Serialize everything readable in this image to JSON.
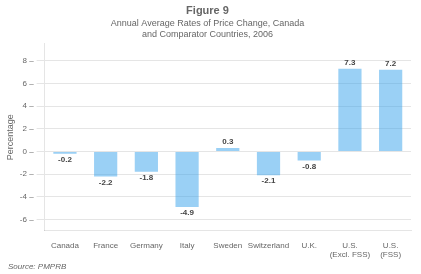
{
  "chart_data": {
    "type": "bar",
    "title": "Figure 9",
    "subtitle": "Annual Average Rates of Price Change, Canada\nand Comparator Countries, 2006",
    "ylabel": "Percentage",
    "categories": [
      "Canada",
      "France",
      "Germany",
      "Italy",
      "Sweden",
      "Switzerland",
      "U.K.",
      "U.S.\n(Excl. FSS)",
      "U.S.\n(FSS)"
    ],
    "values": [
      -0.2,
      -2.2,
      -1.8,
      -4.9,
      0.3,
      -2.1,
      -0.8,
      7.3,
      7.2
    ],
    "ylim": [
      -7,
      9.5
    ],
    "yticks": [
      {
        "value": -6,
        "label": "-6 –"
      },
      {
        "value": -4,
        "label": "-4 –"
      },
      {
        "value": -2,
        "label": "-2 –"
      },
      {
        "value": 0,
        "label": "0 –"
      },
      {
        "value": 2,
        "label": "2 –"
      },
      {
        "value": 4,
        "label": "4 –"
      },
      {
        "value": 6,
        "label": "6 –"
      },
      {
        "value": 8,
        "label": "8 –"
      }
    ],
    "grid": true,
    "data_labels": true,
    "annotations": [
      "Source: PMPRB"
    ]
  }
}
